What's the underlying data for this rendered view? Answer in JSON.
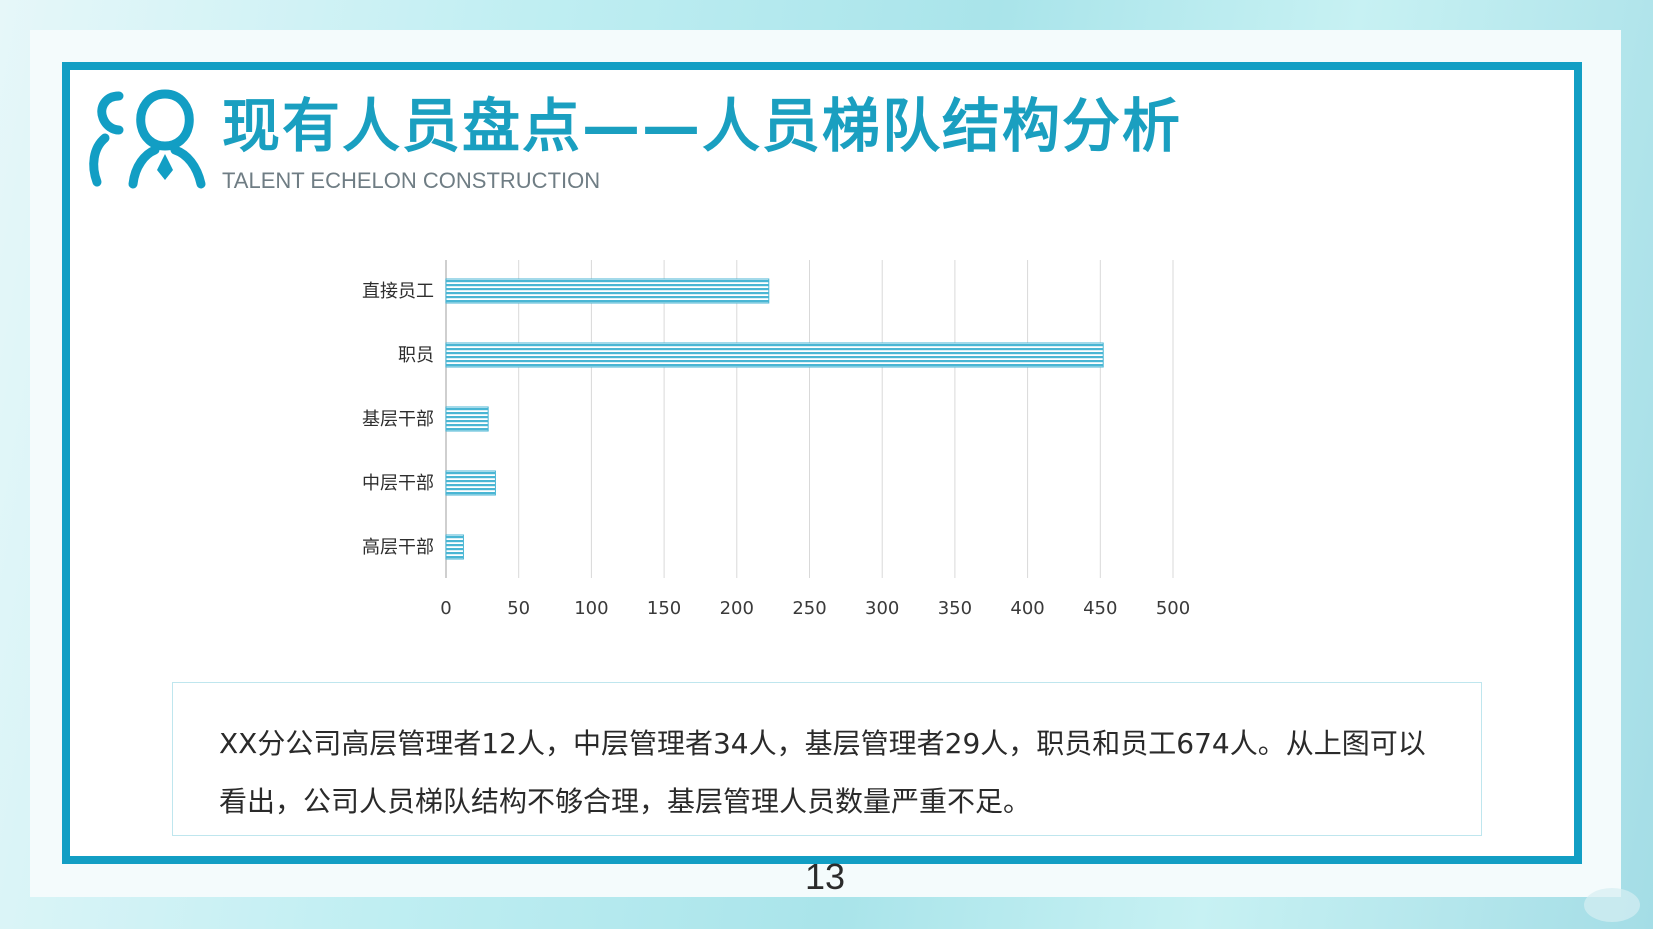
{
  "slide": {
    "title": "现有人员盘点——人员梯队结构分析",
    "subtitle": "TALENT ECHELON CONSTRUCTION",
    "page_number": "13",
    "logo_icon": "people-icon",
    "colors": {
      "accent": "#129ec4",
      "title": "#1a9fc0",
      "bar": "#4ab6d4"
    }
  },
  "chart_data": {
    "type": "bar",
    "orientation": "horizontal",
    "categories": [
      "直接员工",
      "职员",
      "基层干部",
      "中层干部",
      "高层干部"
    ],
    "values": [
      222,
      452,
      29,
      34,
      12
    ],
    "xlim": [
      0,
      500
    ],
    "xticks": [
      "0",
      "50",
      "100",
      "150",
      "200",
      "250",
      "300",
      "350",
      "400",
      "450",
      "500"
    ],
    "grid": true,
    "legend": "none"
  },
  "summary": {
    "text": "XX分公司高层管理者12人，中层管理者34人，基层管理者29人，职员和员工674人。从上图可以看出，公司人员梯队结构不够合理，基层管理人员数量严重不足。"
  }
}
